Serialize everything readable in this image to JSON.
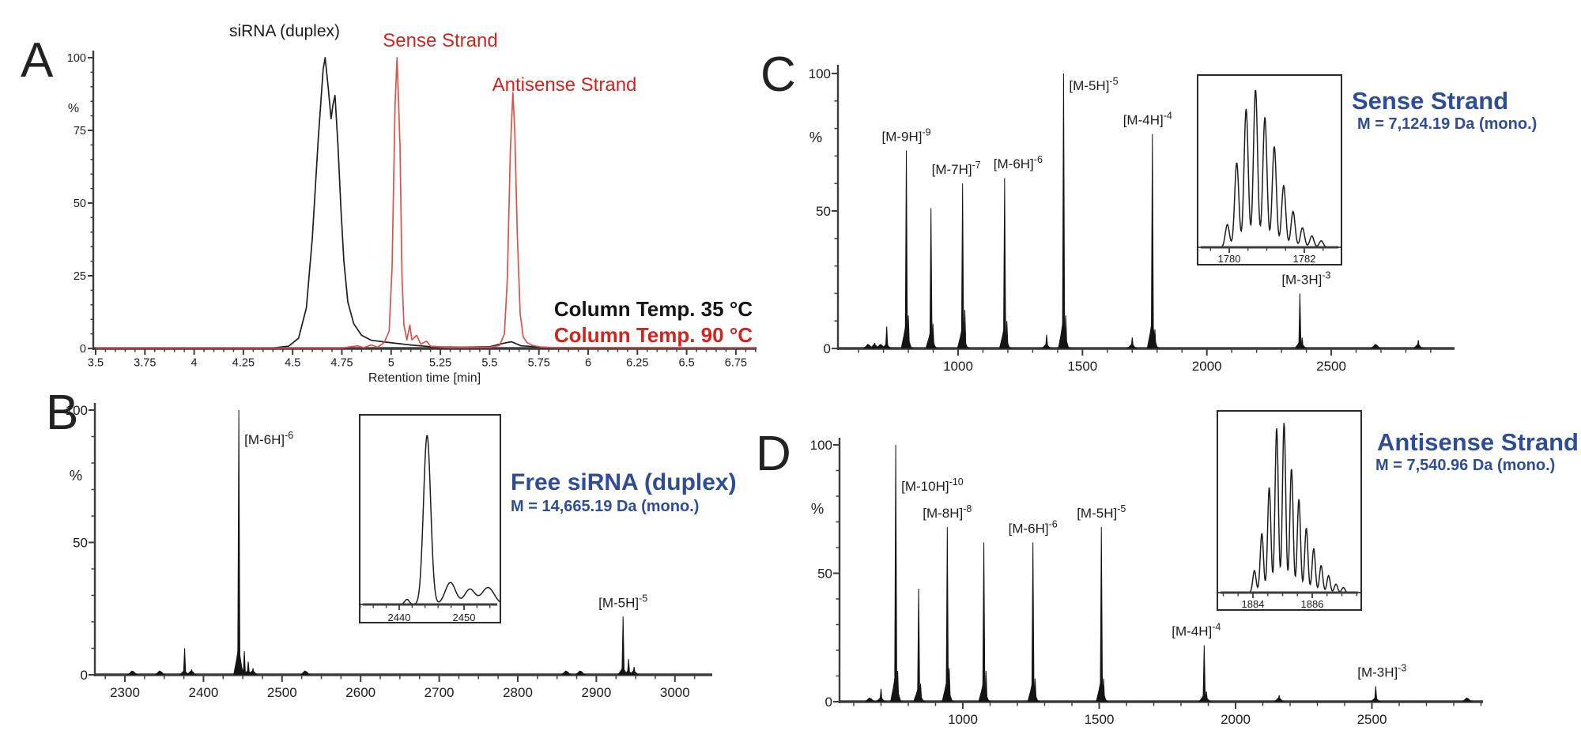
{
  "chart_data": [
    {
      "id": "A",
      "panel_label": "A",
      "type": "line",
      "subtype": "ion-pair-chromatogram",
      "xlabel": "Retention time [min]",
      "ylabel": "%",
      "xlim": [
        3.5,
        6.85
      ],
      "ylim": [
        0,
        100
      ],
      "x_major_ticks": [
        3.5,
        3.75,
        4,
        4.25,
        4.5,
        4.75,
        5,
        5.25,
        5.5,
        5.75,
        6,
        6.25,
        6.5,
        6.75
      ],
      "x_minor_step": 0.05,
      "y_major_ticks": [
        0,
        25,
        50,
        75,
        100
      ],
      "y_minor_step": 5,
      "grid": false,
      "annotations": {
        "duplex": {
          "text": "siRNA (duplex)",
          "color": "#1a1a1a",
          "x": 4.66,
          "y": 108
        },
        "sense": {
          "text": "Sense Strand",
          "color": "#d2241e",
          "x": 5.25,
          "y": 105
        },
        "antisense": {
          "text": "Antisense Strand",
          "color": "#d2241e",
          "x": 5.87,
          "y": 89
        }
      },
      "legend": [
        {
          "label": "Column Temp. 35 °C",
          "color": "#141414"
        },
        {
          "label": "Column Temp. 90 °C",
          "color": "#d2241e"
        }
      ],
      "series": [
        {
          "name": "Column Temp. 35 °C",
          "color": "#1e1e1e",
          "peak_retention_min": 4.65,
          "points": [
            [
              3.5,
              0.2
            ],
            [
              4.4,
              0.2
            ],
            [
              4.48,
              0.8
            ],
            [
              4.53,
              3.5
            ],
            [
              4.57,
              14
            ],
            [
              4.6,
              38
            ],
            [
              4.63,
              72
            ],
            [
              4.655,
              96
            ],
            [
              4.665,
              100
            ],
            [
              4.68,
              90
            ],
            [
              4.695,
              79
            ],
            [
              4.705,
              84
            ],
            [
              4.715,
              87
            ],
            [
              4.73,
              70
            ],
            [
              4.745,
              48
            ],
            [
              4.76,
              30
            ],
            [
              4.78,
              16
            ],
            [
              4.81,
              8.5
            ],
            [
              4.85,
              4.5
            ],
            [
              4.9,
              2.8
            ],
            [
              4.97,
              2.2
            ],
            [
              5.02,
              1.8
            ],
            [
              5.1,
              1.2
            ],
            [
              5.2,
              0.6
            ],
            [
              5.35,
              0.4
            ],
            [
              5.5,
              0.6
            ],
            [
              5.57,
              1.8
            ],
            [
              5.61,
              2.3
            ],
            [
              5.66,
              0.9
            ],
            [
              5.8,
              0.3
            ],
            [
              6.85,
              0.2
            ]
          ]
        },
        {
          "name": "Column Temp. 90 °C",
          "color": "#dd5149",
          "peak_retention_min": [
            5.03,
            5.62
          ],
          "points": [
            [
              3.5,
              0.15
            ],
            [
              4.75,
              0.15
            ],
            [
              4.83,
              0.9
            ],
            [
              4.86,
              0.3
            ],
            [
              4.9,
              1.2
            ],
            [
              4.93,
              0.4
            ],
            [
              4.965,
              2
            ],
            [
              4.99,
              6
            ],
            [
              5.005,
              28
            ],
            [
              5.02,
              84
            ],
            [
              5.03,
              100
            ],
            [
              5.045,
              70
            ],
            [
              5.055,
              25
            ],
            [
              5.065,
              8
            ],
            [
              5.08,
              3
            ],
            [
              5.095,
              8
            ],
            [
              5.105,
              3
            ],
            [
              5.13,
              4.5
            ],
            [
              5.15,
              1.5
            ],
            [
              5.18,
              2.5
            ],
            [
              5.2,
              0.8
            ],
            [
              5.3,
              0.3
            ],
            [
              5.5,
              0.4
            ],
            [
              5.55,
              1
            ],
            [
              5.575,
              5
            ],
            [
              5.59,
              24
            ],
            [
              5.605,
              68
            ],
            [
              5.618,
              88
            ],
            [
              5.628,
              74
            ],
            [
              5.64,
              40
            ],
            [
              5.655,
              12
            ],
            [
              5.67,
              4
            ],
            [
              5.69,
              2
            ],
            [
              5.72,
              1
            ],
            [
              5.76,
              0.5
            ],
            [
              5.82,
              0.3
            ],
            [
              6.85,
              0.2
            ]
          ]
        }
      ]
    },
    {
      "id": "B",
      "panel_label": "B",
      "type": "bar",
      "subtype": "mass-spectrum",
      "title": "Free siRNA (duplex)",
      "subtitle": "M = 14,665.19 Da (mono.)",
      "title_color": "#2f4d96",
      "ylabel": "%",
      "xlim": [
        2262,
        3046
      ],
      "ylim": [
        0,
        100
      ],
      "x_major_ticks": [
        2300,
        2400,
        2500,
        2600,
        2700,
        2800,
        2900,
        3000
      ],
      "x_minor_step": 25,
      "y_major_ticks": [
        0,
        50,
        100
      ],
      "y_minor_step": 10,
      "grid": false,
      "peaks": [
        {
          "mz": 2310,
          "intensity": 1
        },
        {
          "mz": 2345,
          "intensity": 1.2
        },
        {
          "mz": 2376,
          "intensity": 10
        },
        {
          "mz": 2385,
          "intensity": 2
        },
        {
          "mz": 2445,
          "intensity": 100,
          "label": "[M-6H]",
          "charge": "-6",
          "labelMode": "right",
          "labelDy": 43
        },
        {
          "mz": 2452,
          "intensity": 9
        },
        {
          "mz": 2457,
          "intensity": 5
        },
        {
          "mz": 2463,
          "intensity": 2.5
        },
        {
          "mz": 2530,
          "intensity": 0.8
        },
        {
          "mz": 2862,
          "intensity": 1.2
        },
        {
          "mz": 2880,
          "intensity": 1.5
        },
        {
          "mz": 2934,
          "intensity": 22,
          "label": "[M-5H]",
          "charge": "-5"
        },
        {
          "mz": 2941,
          "intensity": 6
        },
        {
          "mz": 2948,
          "intensity": 3
        }
      ],
      "inset": {
        "xlim": [
          2433.9,
          2455.5
        ],
        "ticks": [
          2440,
          2450
        ],
        "minor_step": 2,
        "peaks": [
          {
            "x": 2441.2,
            "h": 3,
            "w": 0.35
          },
          {
            "x": 2444.3,
            "h": 100,
            "w": 0.55
          },
          {
            "x": 2447.9,
            "h": 13,
            "w": 0.8
          },
          {
            "x": 2450.9,
            "h": 9,
            "w": 0.8
          },
          {
            "x": 2453.7,
            "h": 10,
            "w": 0.95
          }
        ]
      }
    },
    {
      "id": "C",
      "panel_label": "C",
      "type": "bar",
      "subtype": "mass-spectrum",
      "title": "Sense Strand",
      "subtitle": "M = 7,124.19 Da (mono.)",
      "title_color": "#2f4d96",
      "ylabel": "%",
      "xlim": [
        517,
        2980
      ],
      "ylim": [
        0,
        100
      ],
      "x_major_ticks": [
        1000,
        1500,
        2000,
        2500
      ],
      "x_minor_step": 100,
      "y_major_ticks": [
        0,
        50,
        100
      ],
      "y_minor_step": 10,
      "grid": false,
      "peaks": [
        {
          "mz": 640,
          "intensity": 1.5
        },
        {
          "mz": 665,
          "intensity": 2
        },
        {
          "mz": 690,
          "intensity": 1.5
        },
        {
          "mz": 713,
          "intensity": 8
        },
        {
          "mz": 792,
          "intensity": 72,
          "label": "[M-9H]",
          "charge": "-9"
        },
        {
          "mz": 800,
          "intensity": 12
        },
        {
          "mz": 891,
          "intensity": 51
        },
        {
          "mz": 899,
          "intensity": 9
        },
        {
          "mz": 1018,
          "intensity": 60,
          "label": "[M-7H]",
          "charge": "-7",
          "dx": -8
        },
        {
          "mz": 1027,
          "intensity": 14
        },
        {
          "mz": 1187,
          "intensity": 62,
          "label": "[M-6H]",
          "charge": "-6",
          "dx": 17
        },
        {
          "mz": 1196,
          "intensity": 10
        },
        {
          "mz": 1356,
          "intensity": 5
        },
        {
          "mz": 1424,
          "intensity": 100,
          "label": "[M-5H]",
          "charge": "-5",
          "labelMode": "right",
          "labelDy": 21
        },
        {
          "mz": 1433,
          "intensity": 12
        },
        {
          "mz": 1700,
          "intensity": 4
        },
        {
          "mz": 1781,
          "intensity": 78,
          "label": "[M-4H]",
          "charge": "-4",
          "dx": -6
        },
        {
          "mz": 1791,
          "intensity": 7
        },
        {
          "mz": 2374,
          "intensity": 20,
          "label": "[M-3H]",
          "charge": "-3",
          "dx": 8
        },
        {
          "mz": 2383,
          "intensity": 4
        },
        {
          "mz": 2680,
          "intensity": 1.5
        },
        {
          "mz": 2850,
          "intensity": 3
        }
      ],
      "inset": {
        "xlim": [
          1779.16,
          1782.99
        ],
        "ticks": [
          1780,
          1782
        ],
        "minor_step": 0.5,
        "isotope_start": 1779.95,
        "isotope_spacing": 0.25,
        "peaks": [
          {
            "x": 1779.95,
            "h": 14,
            "w": 0.055
          },
          {
            "x": 1780.2,
            "h": 52,
            "w": 0.055
          },
          {
            "x": 1780.45,
            "h": 85,
            "w": 0.055
          },
          {
            "x": 1780.7,
            "h": 97,
            "w": 0.055
          },
          {
            "x": 1780.95,
            "h": 80,
            "w": 0.055
          },
          {
            "x": 1781.2,
            "h": 62,
            "w": 0.055
          },
          {
            "x": 1781.45,
            "h": 38,
            "w": 0.055
          },
          {
            "x": 1781.7,
            "h": 22,
            "w": 0.055
          },
          {
            "x": 1781.95,
            "h": 12,
            "w": 0.055
          },
          {
            "x": 1782.2,
            "h": 7,
            "w": 0.055
          },
          {
            "x": 1782.45,
            "h": 4,
            "w": 0.055
          }
        ]
      }
    },
    {
      "id": "D",
      "panel_label": "D",
      "type": "bar",
      "subtype": "mass-spectrum",
      "title": "Antisense Strand",
      "subtitle": "M = 7,540.96 Da (mono.)",
      "title_color": "#2f4d96",
      "ylabel": "%",
      "xlim": [
        548,
        2904
      ],
      "ylim": [
        0,
        100
      ],
      "x_major_ticks": [
        1000,
        1500,
        2000,
        2500
      ],
      "x_minor_step": 100,
      "y_major_ticks": [
        0,
        50,
        100
      ],
      "y_minor_step": 10,
      "grid": false,
      "peaks": [
        {
          "mz": 660,
          "intensity": 1
        },
        {
          "mz": 700,
          "intensity": 5
        },
        {
          "mz": 754,
          "intensity": 100,
          "label": "[M-10H]",
          "charge": "-10",
          "labelMode": "right",
          "labelDy": 58
        },
        {
          "mz": 761,
          "intensity": 12
        },
        {
          "mz": 838,
          "intensity": 44
        },
        {
          "mz": 845,
          "intensity": 7
        },
        {
          "mz": 943,
          "intensity": 68,
          "label": "[M-8H]",
          "charge": "-8"
        },
        {
          "mz": 950,
          "intensity": 13
        },
        {
          "mz": 1077,
          "intensity": 62
        },
        {
          "mz": 1085,
          "intensity": 12
        },
        {
          "mz": 1257,
          "intensity": 62,
          "label": "[M-6H]",
          "charge": "-6"
        },
        {
          "mz": 1265,
          "intensity": 9
        },
        {
          "mz": 1508,
          "intensity": 68,
          "label": "[M-5H]",
          "charge": "-5"
        },
        {
          "mz": 1516,
          "intensity": 9
        },
        {
          "mz": 1885,
          "intensity": 22,
          "label": "[M-4H]",
          "charge": "-4",
          "dx": -10
        },
        {
          "mz": 1893,
          "intensity": 4
        },
        {
          "mz": 2160,
          "intensity": 2.5
        },
        {
          "mz": 2514,
          "intensity": 6,
          "label": "[M-3H]",
          "charge": "-3",
          "dx": 8
        },
        {
          "mz": 2850,
          "intensity": 1.2
        }
      ],
      "inset": {
        "xlim": [
          1882.8,
          1887.65
        ],
        "ticks": [
          1884,
          1886
        ],
        "minor_step": 0.5,
        "isotope_start": 1884.05,
        "isotope_spacing": 0.25,
        "peaks": [
          {
            "x": 1884.05,
            "h": 13,
            "w": 0.055
          },
          {
            "x": 1884.3,
            "h": 35,
            "w": 0.055
          },
          {
            "x": 1884.55,
            "h": 62,
            "w": 0.055
          },
          {
            "x": 1884.8,
            "h": 97,
            "w": 0.055
          },
          {
            "x": 1885.05,
            "h": 100,
            "w": 0.055
          },
          {
            "x": 1885.3,
            "h": 73,
            "w": 0.055
          },
          {
            "x": 1885.55,
            "h": 55,
            "w": 0.055
          },
          {
            "x": 1885.8,
            "h": 38,
            "w": 0.055
          },
          {
            "x": 1886.05,
            "h": 26,
            "w": 0.055
          },
          {
            "x": 1886.3,
            "h": 16,
            "w": 0.055
          },
          {
            "x": 1886.55,
            "h": 10,
            "w": 0.055
          },
          {
            "x": 1886.8,
            "h": 5,
            "w": 0.055
          },
          {
            "x": 1887.05,
            "h": 3,
            "w": 0.055
          }
        ]
      }
    }
  ]
}
